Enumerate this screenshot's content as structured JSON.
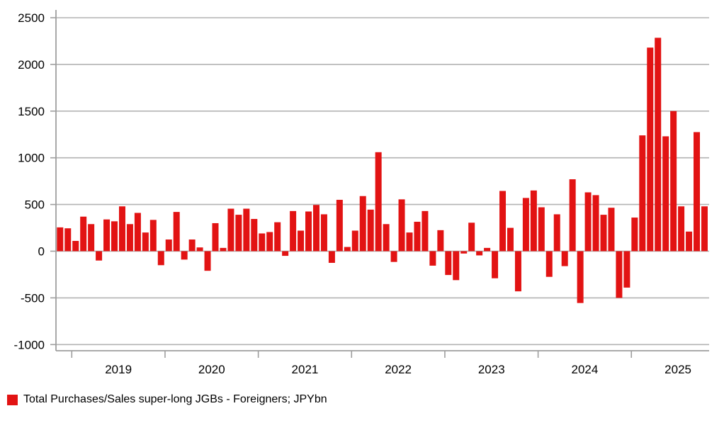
{
  "page": {
    "background": "#ffffff"
  },
  "chart_data": {
    "type": "bar",
    "title": "",
    "unit": "JPYbn",
    "grid": true,
    "legend_position": "bottom-left",
    "y_ticks": [
      2500,
      2000,
      1500,
      1000,
      500,
      0,
      -500,
      -1000
    ],
    "ylim": [
      -1065,
      2585
    ],
    "x_tick_labels": [
      "2019",
      "2020",
      "2021",
      "2022",
      "2023",
      "2024",
      "2025"
    ],
    "x_start": "2018-11",
    "x_freq": "monthly",
    "series": [
      {
        "name": "Total Purchases/Sales super-long JGBs - Foreigners; JPYbn",
        "color": "#e21313",
        "values": [
          255,
          245,
          110,
          370,
          290,
          -100,
          340,
          320,
          480,
          290,
          410,
          200,
          335,
          -150,
          125,
          420,
          -90,
          125,
          40,
          -210,
          300,
          35,
          455,
          390,
          455,
          345,
          190,
          205,
          310,
          -50,
          430,
          220,
          425,
          495,
          395,
          -125,
          550,
          45,
          220,
          590,
          445,
          1060,
          290,
          -115,
          555,
          200,
          315,
          430,
          -155,
          225,
          -255,
          -310,
          -25,
          305,
          -45,
          35,
          -290,
          645,
          250,
          -430,
          570,
          650,
          470,
          -275,
          395,
          -160,
          770,
          -555,
          630,
          600,
          390,
          465,
          -500,
          -390,
          360,
          1240,
          2180,
          2285,
          1230,
          1500,
          480,
          210,
          1275,
          480
        ]
      }
    ],
    "colors": {
      "bar": "#e21313",
      "gridline": "#b3b3b3",
      "axis": "#9e9e9e",
      "text": "#000000"
    }
  }
}
